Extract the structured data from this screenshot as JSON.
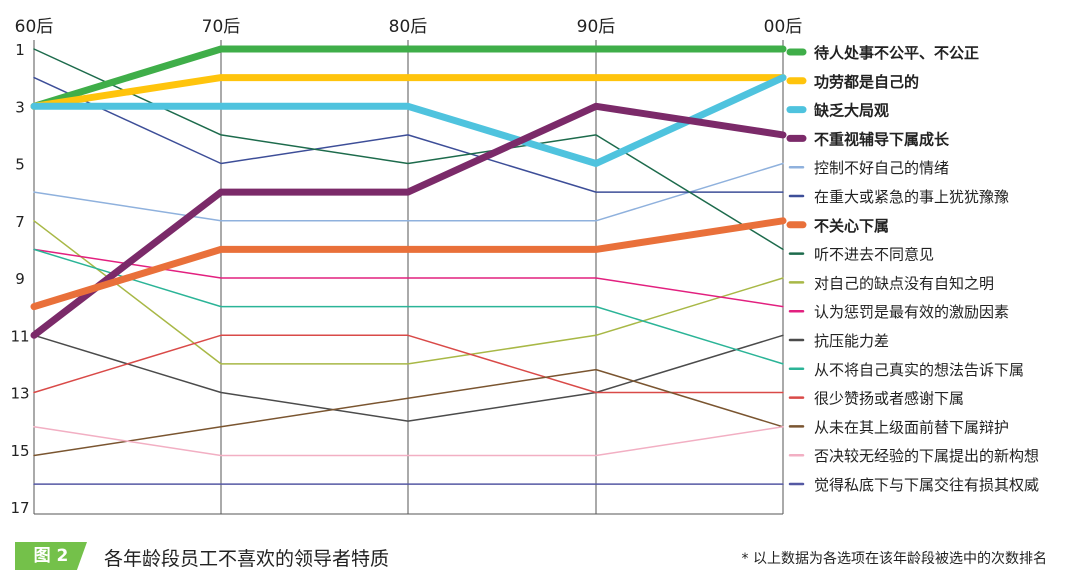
{
  "chart_data": {
    "type": "line",
    "categories": [
      "60后",
      "70后",
      "80后",
      "90后",
      "00后"
    ],
    "y_ticks": [
      "1",
      "3",
      "5",
      "7",
      "9",
      "11",
      "13",
      "15",
      "17"
    ],
    "ylim": [
      1,
      17
    ],
    "y_inverted": true,
    "grid": true,
    "legend_position": "right",
    "series": [
      {
        "name": "待人处事不公平、不公正",
        "values": [
          3,
          1,
          1,
          1,
          1
        ],
        "color": "#3fae49",
        "bold": true
      },
      {
        "name": "功劳都是自己的",
        "values": [
          3,
          2,
          2,
          2,
          2
        ],
        "color": "#ffc40c",
        "bold": true
      },
      {
        "name": "缺乏大局观",
        "values": [
          3,
          3,
          3,
          5,
          2
        ],
        "color": "#4fc3de",
        "bold": true
      },
      {
        "name": "不重视辅导下属成长",
        "values": [
          11,
          6,
          6,
          3,
          4
        ],
        "color": "#7b2a69",
        "bold": true
      },
      {
        "name": "控制不好自己的情绪",
        "values": [
          6,
          7,
          7,
          7,
          5
        ],
        "color": "#8fb1dd",
        "bold": false
      },
      {
        "name": "在重大或紧急的事上犹犹豫豫",
        "values": [
          2,
          5,
          4,
          6,
          6
        ],
        "color": "#3d4e98",
        "bold": false
      },
      {
        "name": "不关心下属",
        "values": [
          10,
          8,
          8,
          8,
          7
        ],
        "color": "#e9703a",
        "bold": true
      },
      {
        "name": "听不进去不同意见",
        "values": [
          1,
          4,
          5,
          4,
          8
        ],
        "color": "#1d6b4c",
        "bold": false
      },
      {
        "name": "对自己的缺点没有自知之明",
        "values": [
          7,
          12,
          12,
          11,
          9
        ],
        "color": "#a8b846",
        "bold": false
      },
      {
        "name": "认为惩罚是最有效的激励因素",
        "values": [
          8,
          9,
          9,
          9,
          10
        ],
        "color": "#e2207f",
        "bold": false
      },
      {
        "name": "抗压能力差",
        "values": [
          11,
          13,
          14,
          13,
          11
        ],
        "color": "#4b4b4b",
        "bold": false
      },
      {
        "name": "从不将自己真实的想法告诉下属",
        "values": [
          8,
          10,
          10,
          10,
          12
        ],
        "color": "#2bb497",
        "bold": false
      },
      {
        "name": "很少赞扬或者感谢下属",
        "values": [
          13,
          11,
          11,
          13,
          13
        ],
        "color": "#d94a48",
        "bold": false
      },
      {
        "name": "从未在其上级面前替下属辩护",
        "values": [
          15.2,
          14.2,
          13.2,
          12.2,
          14.2
        ],
        "color": "#7a5530",
        "bold": false
      },
      {
        "name": "否决较无经验的下属提出的新构想",
        "values": [
          14.2,
          15.2,
          15.2,
          15.2,
          14.2
        ],
        "color": "#f2afc3",
        "bold": false
      },
      {
        "name": "觉得私底下与下属交往有损其权威",
        "values": [
          16.2,
          16.2,
          16.2,
          16.2,
          16.2
        ],
        "color": "#5458a3",
        "bold": false
      }
    ]
  },
  "footer": {
    "figure_label": "图 2",
    "title": "各年龄段员工不喜欢的领导者特质",
    "note": "* 以上数据为各选项在该年龄段被选中的次数排名"
  }
}
